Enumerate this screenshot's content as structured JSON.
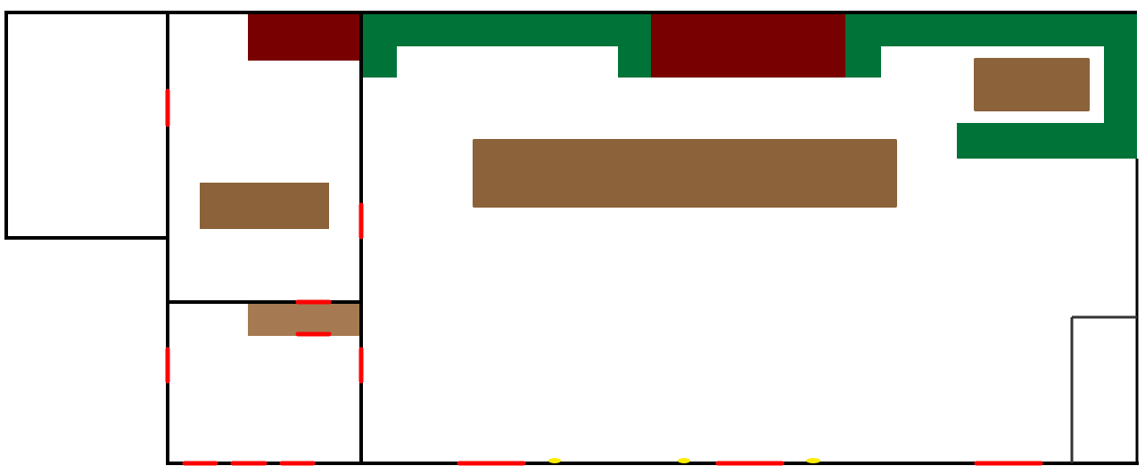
{
  "colors": {
    "wall": "#000000",
    "door": "#ff0000",
    "counter": "#007338",
    "appliance": "#780000",
    "furniture": "#8b6239",
    "furniture_light": "#a57a52",
    "closet": "#333333",
    "light": "#ffee00"
  }
}
